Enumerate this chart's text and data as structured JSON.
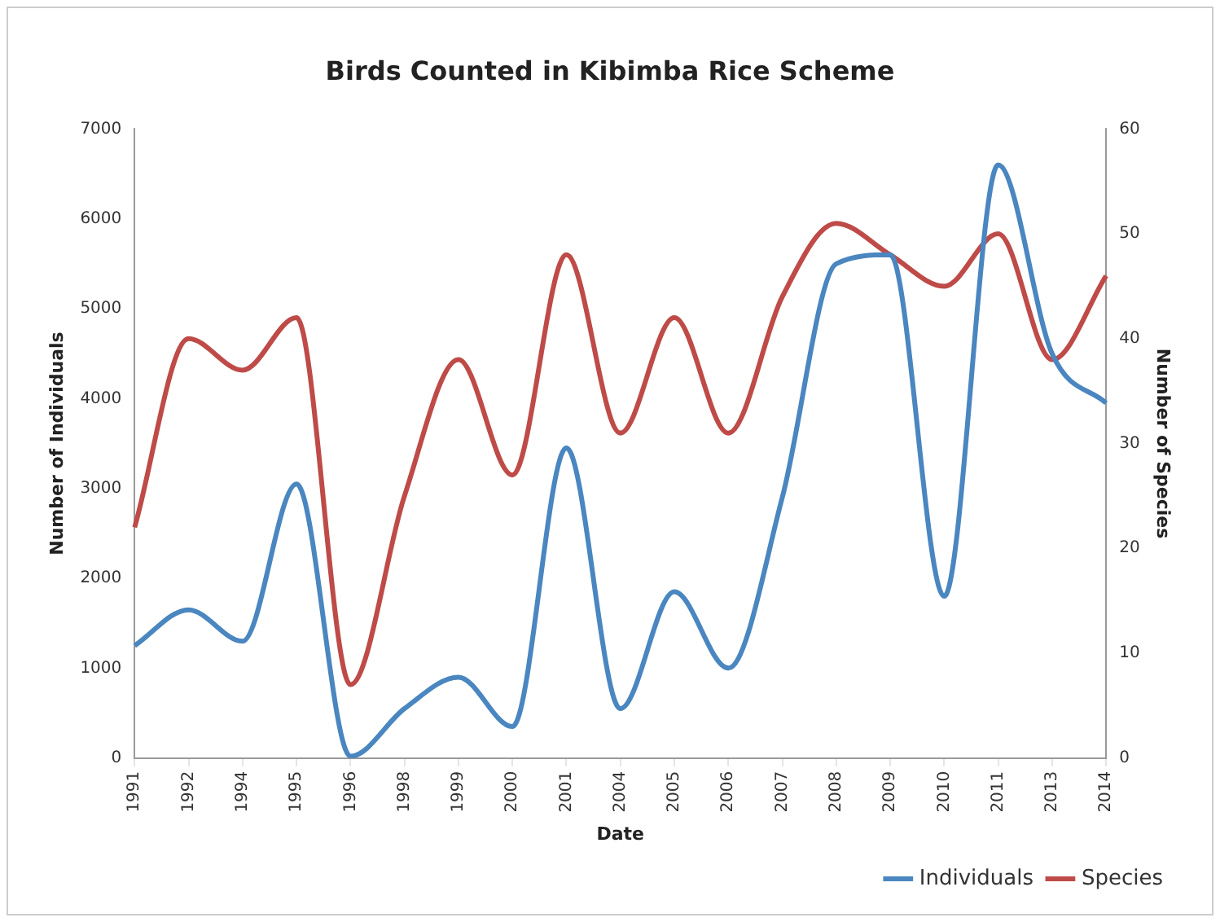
{
  "chart_data": {
    "type": "line",
    "title": "Birds Counted in Kibimba Rice Scheme",
    "xlabel": "Date",
    "ylabel": "Number of Individuals",
    "y2label": "Number of Species",
    "categories": [
      "1991",
      "1992",
      "1994",
      "1995",
      "1996",
      "1998",
      "1999",
      "2000",
      "2001",
      "2004",
      "2005",
      "2006",
      "2007",
      "2008",
      "2009",
      "2010",
      "2011",
      "2013",
      "2014"
    ],
    "series": [
      {
        "name": "Individuals",
        "color": "#4a86c0",
        "values": [
          1250,
          1650,
          1300,
          3050,
          20,
          550,
          900,
          350,
          3450,
          550,
          1850,
          1000,
          2900,
          5500,
          5600,
          1800,
          6600,
          4500,
          3950
        ]
      },
      {
        "name": "Species",
        "color": "#be4b48",
        "axis": "y2",
        "values": [
          22,
          40,
          37,
          42,
          7,
          25,
          38,
          27,
          48,
          31,
          42,
          31,
          44,
          51,
          48,
          45,
          50,
          38,
          46
        ]
      }
    ],
    "ylim": [
      0,
      7000
    ],
    "yticks": [
      0,
      1000,
      2000,
      3000,
      4000,
      5000,
      6000,
      7000
    ],
    "y2lim": [
      0,
      60
    ],
    "y2ticks": [
      0,
      10,
      20,
      30,
      40,
      50,
      60
    ],
    "grid": false,
    "legend": "bottom right",
    "marker": "none",
    "line_style": "solid"
  }
}
